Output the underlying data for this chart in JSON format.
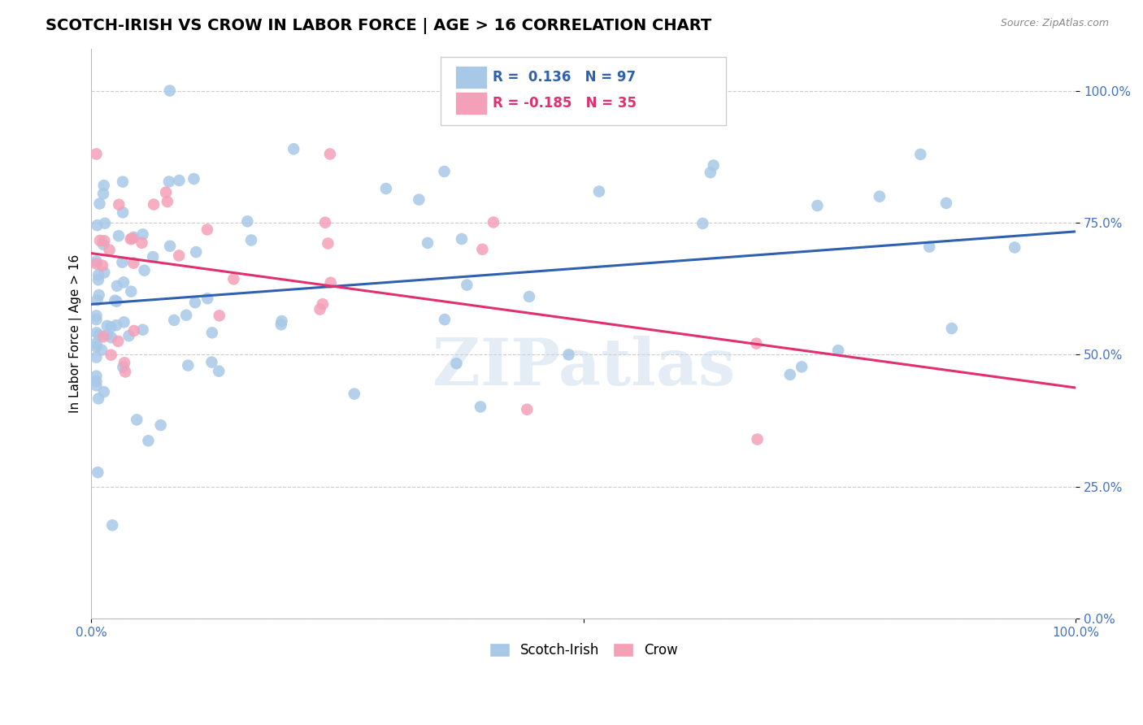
{
  "title": "SCOTCH-IRISH VS CROW IN LABOR FORCE | AGE > 16 CORRELATION CHART",
  "source_text": "Source: ZipAtlas.com",
  "ylabel": "In Labor Force | Age > 16",
  "xlim": [
    0.0,
    1.0
  ],
  "ylim": [
    0.0,
    1.08
  ],
  "y_ticks": [
    0.0,
    0.25,
    0.5,
    0.75,
    1.0
  ],
  "scotch_irish_R": 0.136,
  "scotch_irish_N": 97,
  "crow_R": -0.185,
  "crow_N": 35,
  "scotch_irish_color": "#a8c8e8",
  "crow_color": "#f4a0b8",
  "scotch_irish_line_color": "#3060b0",
  "crow_line_color": "#e03070",
  "background_color": "#ffffff",
  "grid_color": "#cccccc",
  "watermark": "ZIPatlas",
  "title_fontsize": 14,
  "axis_label_fontsize": 11,
  "tick_fontsize": 11,
  "tick_color": "#4472c4"
}
